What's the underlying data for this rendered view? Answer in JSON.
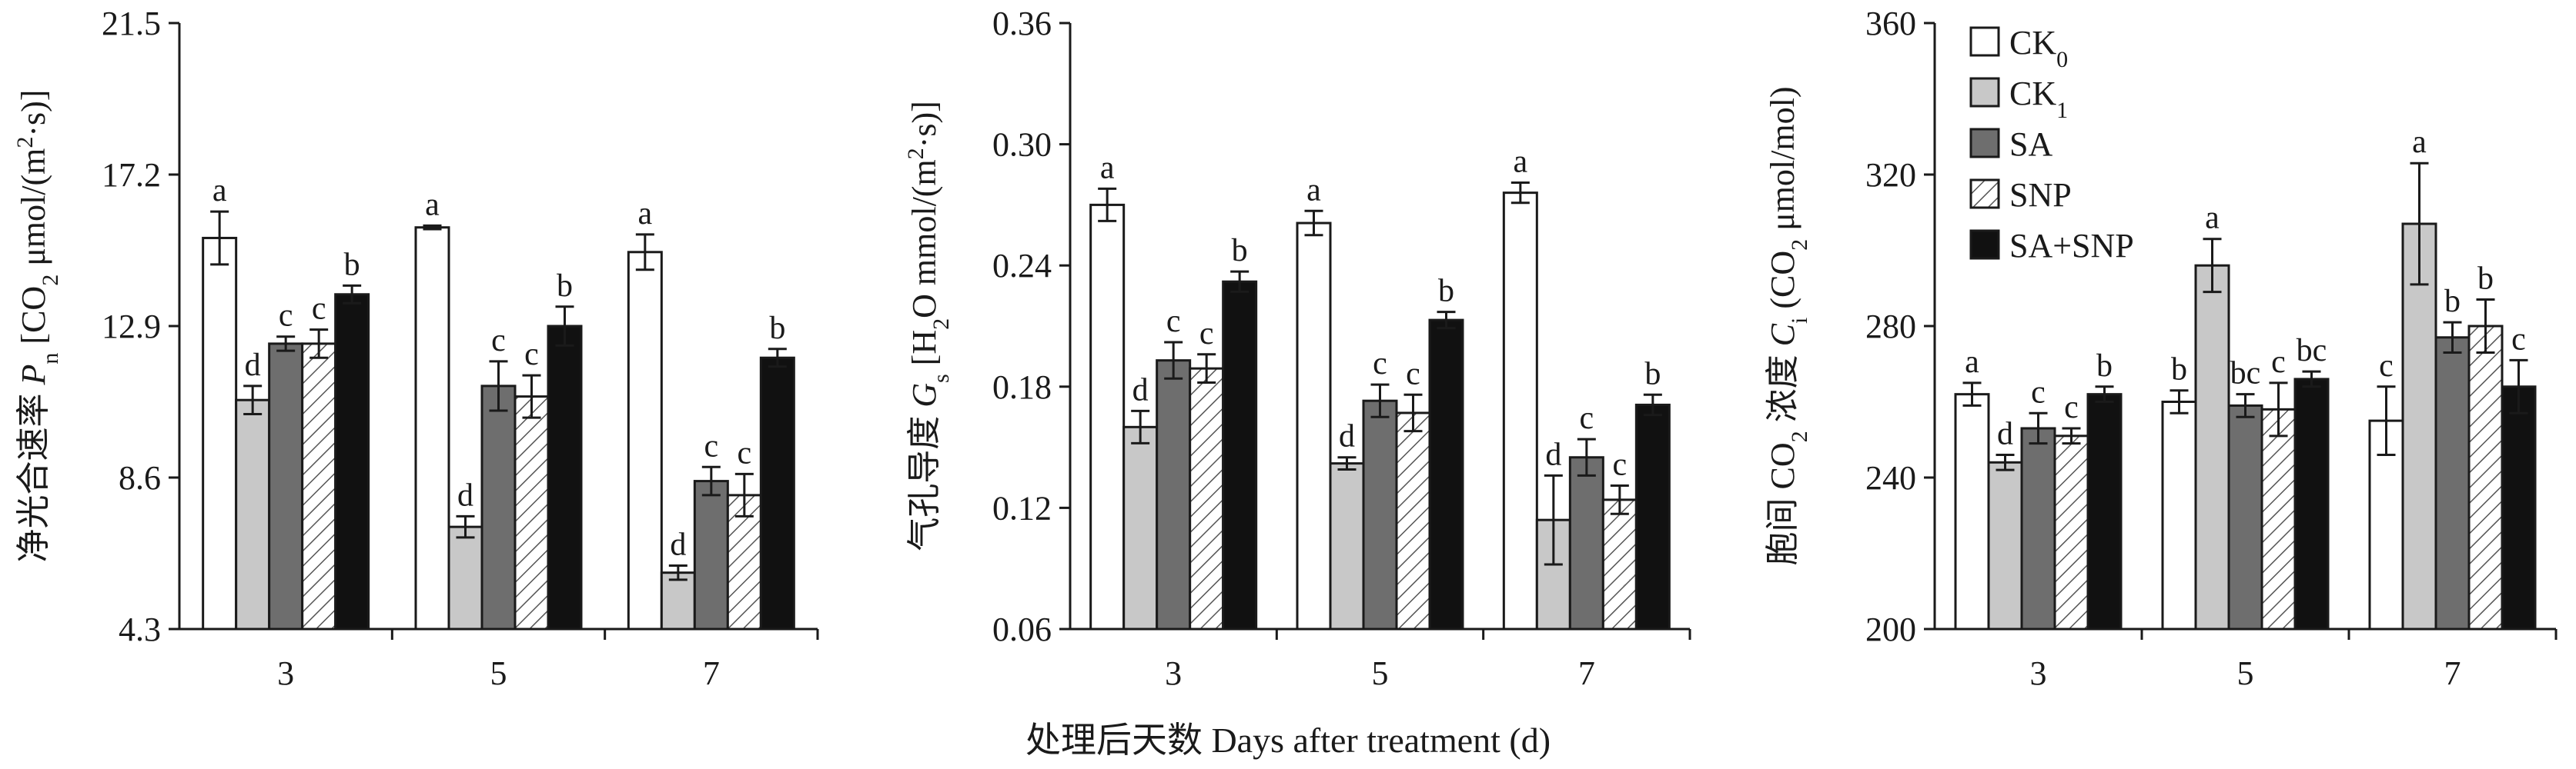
{
  "figure": {
    "x_axis_title": "处理后天数 Days after treatment (d)"
  },
  "colors": {
    "CK0": "#ffffff",
    "CK1": "#c8c8c8",
    "SA": "#6e6e6e",
    "SNP": "hatch",
    "SA+SNP": "#111111"
  },
  "legend": {
    "placement": "top-right of third panel",
    "entries": [
      {
        "key": "CK0",
        "base": "CK",
        "sub": "0"
      },
      {
        "key": "CK1",
        "base": "CK",
        "sub": "1"
      },
      {
        "key": "SA",
        "base": "SA",
        "sub": ""
      },
      {
        "key": "SNP",
        "base": "SNP",
        "sub": ""
      },
      {
        "key": "SA+SNP",
        "base": "SA+SNP",
        "sub": ""
      }
    ]
  },
  "chart_data": [
    {
      "type": "bar",
      "ylabel_parts": [
        {
          "t": "净光合速率 "
        },
        {
          "t": "P",
          "italic": true
        },
        {
          "t": "n",
          "sub": true
        },
        {
          "t": " [CO"
        },
        {
          "t": "2",
          "sub": true
        },
        {
          "t": " μmol/(m"
        },
        {
          "t": "2",
          "sup": true
        },
        {
          "t": "·s)]"
        }
      ],
      "ylim": [
        4.3,
        21.5
      ],
      "yticks": [
        "4.3",
        "8.6",
        "12.9",
        "17.2",
        "21.5"
      ],
      "categories": [
        "3",
        "5",
        "7"
      ],
      "series": [
        {
          "name": "CK0",
          "values": [
            15.4,
            15.7,
            15.0
          ],
          "errors": [
            0.75,
            0.05,
            0.5
          ],
          "labels": [
            "a",
            "a",
            "a"
          ]
        },
        {
          "name": "CK1",
          "values": [
            10.8,
            7.2,
            5.9
          ],
          "errors": [
            0.4,
            0.3,
            0.2
          ],
          "labels": [
            "d",
            "d",
            "d"
          ]
        },
        {
          "name": "SA",
          "values": [
            12.4,
            11.2,
            8.5
          ],
          "errors": [
            0.2,
            0.7,
            0.4
          ],
          "labels": [
            "c",
            "c",
            "c"
          ]
        },
        {
          "name": "SNP",
          "values": [
            12.4,
            10.9,
            8.1
          ],
          "errors": [
            0.4,
            0.6,
            0.6
          ],
          "labels": [
            "c",
            "c",
            "c"
          ]
        },
        {
          "name": "SA+SNP",
          "values": [
            13.8,
            12.9,
            12.0
          ],
          "errors": [
            0.25,
            0.55,
            0.25
          ],
          "labels": [
            "b",
            "b",
            "b"
          ]
        }
      ]
    },
    {
      "type": "bar",
      "ylabel_parts": [
        {
          "t": "气孔导度 "
        },
        {
          "t": "G",
          "italic": true
        },
        {
          "t": "s",
          "sub": true
        },
        {
          "t": " [H"
        },
        {
          "t": "2",
          "sub": true
        },
        {
          "t": "O mmol/(m"
        },
        {
          "t": "2",
          "sup": true
        },
        {
          "t": "·s)]"
        }
      ],
      "ylim": [
        0.06,
        0.36
      ],
      "yticks": [
        "0.06",
        "0.12",
        "0.18",
        "0.24",
        "0.30",
        "0.36"
      ],
      "categories": [
        "3",
        "5",
        "7"
      ],
      "series": [
        {
          "name": "CK0",
          "values": [
            0.27,
            0.261,
            0.276
          ],
          "errors": [
            0.008,
            0.006,
            0.005
          ],
          "labels": [
            "a",
            "a",
            "a"
          ]
        },
        {
          "name": "CK1",
          "values": [
            0.16,
            0.142,
            0.114
          ],
          "errors": [
            0.008,
            0.003,
            0.022
          ],
          "labels": [
            "d",
            "d",
            "d"
          ]
        },
        {
          "name": "SA",
          "values": [
            0.193,
            0.173,
            0.145
          ],
          "errors": [
            0.009,
            0.008,
            0.009
          ],
          "labels": [
            "c",
            "c",
            "c"
          ]
        },
        {
          "name": "SNP",
          "values": [
            0.189,
            0.167,
            0.124
          ],
          "errors": [
            0.007,
            0.009,
            0.007
          ],
          "labels": [
            "c",
            "c",
            "c"
          ]
        },
        {
          "name": "SA+SNP",
          "values": [
            0.232,
            0.213,
            0.171
          ],
          "errors": [
            0.005,
            0.004,
            0.005
          ],
          "labels": [
            "b",
            "b",
            "b"
          ]
        }
      ]
    },
    {
      "type": "bar",
      "ylabel_parts": [
        {
          "t": "胞间 CO"
        },
        {
          "t": "2",
          "sub": true
        },
        {
          "t": " 浓度 "
        },
        {
          "t": "C",
          "italic": true
        },
        {
          "t": "i",
          "sub": true
        },
        {
          "t": " (CO"
        },
        {
          "t": "2",
          "sub": true
        },
        {
          "t": " μmol/mol)"
        }
      ],
      "ylim": [
        200,
        360
      ],
      "yticks": [
        "200",
        "240",
        "280",
        "320",
        "360"
      ],
      "categories": [
        "3",
        "5",
        "7"
      ],
      "series": [
        {
          "name": "CK0",
          "values": [
            262,
            260,
            255
          ],
          "errors": [
            3,
            3,
            9
          ],
          "labels": [
            "a",
            "b",
            "c"
          ]
        },
        {
          "name": "CK1",
          "values": [
            244,
            296,
            307
          ],
          "errors": [
            2,
            7,
            16
          ],
          "labels": [
            "d",
            "a",
            "a"
          ]
        },
        {
          "name": "SA",
          "values": [
            253,
            259,
            277
          ],
          "errors": [
            4,
            3,
            4
          ],
          "labels": [
            "c",
            "bc",
            "b"
          ]
        },
        {
          "name": "SNP",
          "values": [
            251,
            258,
            280
          ],
          "errors": [
            2,
            7,
            7
          ],
          "labels": [
            "c",
            "c",
            "b"
          ]
        },
        {
          "name": "SA+SNP",
          "values": [
            262,
            266,
            264
          ],
          "errors": [
            2,
            2,
            7
          ],
          "labels": [
            "b",
            "bc",
            "c"
          ]
        }
      ]
    }
  ]
}
